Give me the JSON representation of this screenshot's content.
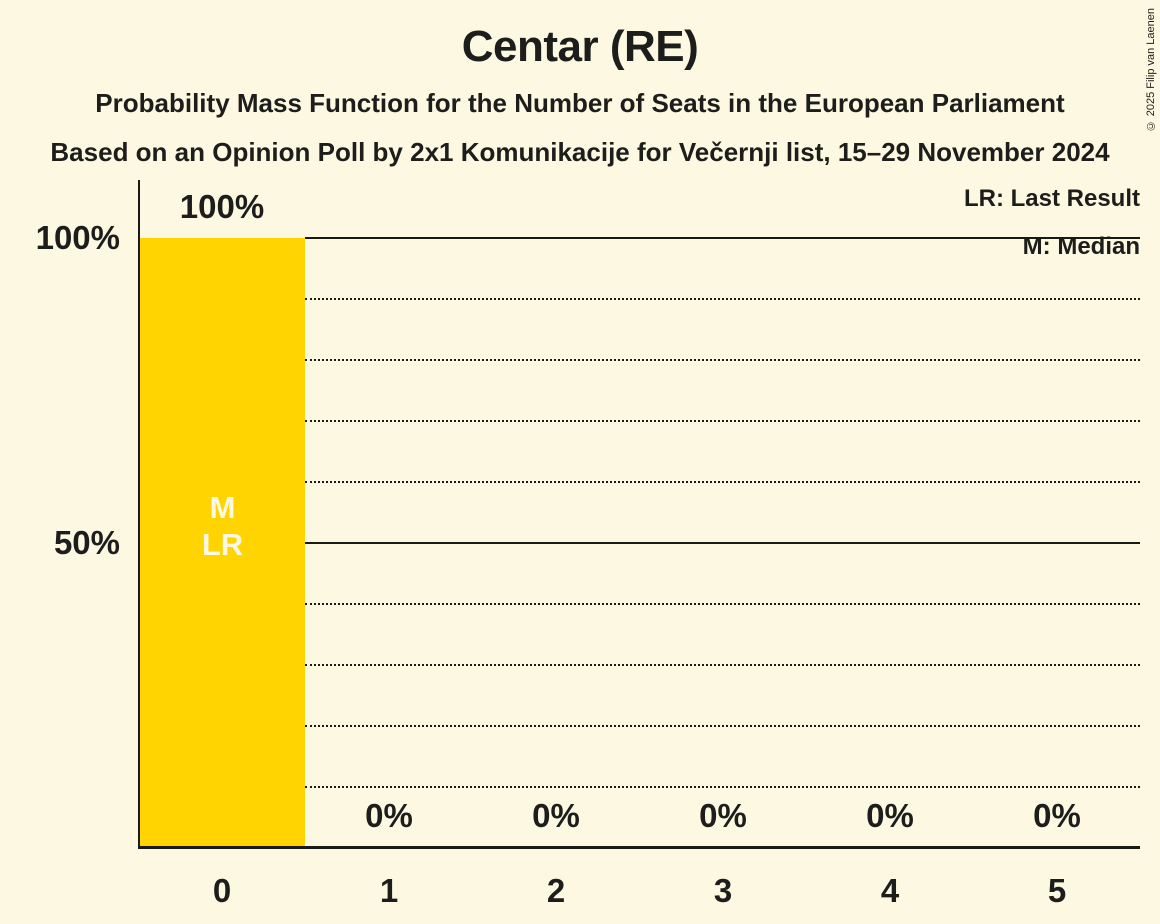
{
  "title": "Centar (RE)",
  "subtitles": [
    "Probability Mass Function for the Number of Seats in the European Parliament",
    "Based on an Opinion Poll by 2x1 Komunikacije for Večernji list, 15–29 November 2024"
  ],
  "copyright": "© 2025 Filip van Laenen",
  "legend": {
    "lr": "LR: Last Result",
    "m": "M: Median"
  },
  "y_axis_labels": {
    "p100": "100%",
    "p50": "50%"
  },
  "bar_markers": {
    "median": "M",
    "last_result": "LR"
  },
  "chart_data": {
    "type": "bar",
    "title": "Centar (RE)",
    "categories": [
      "0",
      "1",
      "2",
      "3",
      "4",
      "5"
    ],
    "values": [
      100,
      0,
      0,
      0,
      0,
      0
    ],
    "value_labels": [
      "100%",
      "0%",
      "0%",
      "0%",
      "0%",
      "0%"
    ],
    "xlabel": "",
    "ylabel": "",
    "ylim": [
      0,
      100
    ],
    "y_solid_gridlines_pct": [
      50,
      100
    ],
    "y_dotted_gridlines_pct": [
      10,
      20,
      30,
      40,
      60,
      70,
      80,
      90
    ],
    "legend_position": "top-right",
    "annotations": {
      "median_seats": "0",
      "last_result_seats": "0"
    },
    "colors": {
      "background": "#FDF8E1",
      "bar": "#FFD400",
      "line": "#1A1A14",
      "text": "#1D1D1B",
      "bar_marker_text": "#FDF8E1"
    }
  }
}
